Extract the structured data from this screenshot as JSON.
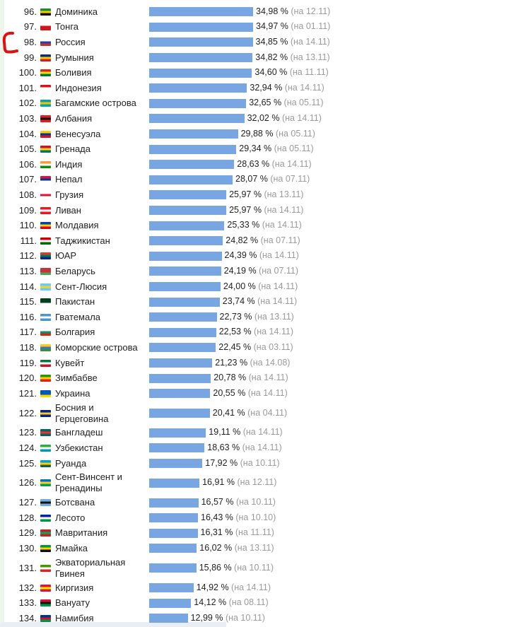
{
  "chart_data": {
    "type": "bar",
    "orientation": "horizontal",
    "value_unit": "%",
    "date_prefix": "на",
    "categories": [
      "Доминика",
      "Тонга",
      "Россия",
      "Румыния",
      "Боливия",
      "Индонезия",
      "Багамские острова",
      "Албания",
      "Венесуэла",
      "Гренада",
      "Индия",
      "Непал",
      "Грузия",
      "Ливан",
      "Молдавия",
      "Таджикистан",
      "ЮАР",
      "Беларусь",
      "Сент-Люсия",
      "Пакистан",
      "Гватемала",
      "Болгария",
      "Коморские острова",
      "Кувейт",
      "Зимбабве",
      "Украина",
      "Босния и Герцеговина",
      "Бангладеш",
      "Узбекистан",
      "Руанда",
      "Сент-Винсент и Гренадины",
      "Ботсвана",
      "Лесото",
      "Мавритания",
      "Ямайка",
      "Экваториальная Гвинея",
      "Киргизия",
      "Вануату",
      "Намибия"
    ],
    "ranks": [
      96,
      97,
      98,
      99,
      100,
      101,
      102,
      103,
      104,
      105,
      106,
      107,
      108,
      109,
      110,
      111,
      112,
      113,
      114,
      115,
      116,
      117,
      118,
      119,
      120,
      121,
      122,
      123,
      124,
      125,
      126,
      127,
      128,
      129,
      130,
      131,
      132,
      133,
      134
    ],
    "values": [
      34.98,
      34.97,
      34.85,
      34.82,
      34.6,
      32.94,
      32.65,
      32.02,
      29.88,
      29.34,
      28.63,
      28.07,
      25.97,
      25.97,
      25.33,
      24.82,
      24.39,
      24.19,
      24.0,
      23.74,
      22.73,
      22.53,
      22.45,
      21.23,
      20.78,
      20.55,
      20.41,
      19.11,
      18.63,
      17.92,
      16.91,
      16.57,
      16.43,
      16.31,
      16.02,
      15.86,
      14.92,
      14.12,
      12.99
    ],
    "value_labels": [
      "34,98 %",
      "34,97 %",
      "34,85 %",
      "34,82 %",
      "34,60 %",
      "32,94 %",
      "32,65 %",
      "32,02 %",
      "29,88 %",
      "29,34 %",
      "28,63 %",
      "28,07 %",
      "25,97 %",
      "25,97 %",
      "25,33 %",
      "24,82 %",
      "24,39 %",
      "24,19 %",
      "24,00 %",
      "23,74 %",
      "22,73 %",
      "22,53 %",
      "22,45 %",
      "21,23 %",
      "20,78 %",
      "20,55 %",
      "20,41 %",
      "19,11 %",
      "18,63 %",
      "17,92 %",
      "16,91 %",
      "16,57 %",
      "16,43 %",
      "16,31 %",
      "16,02 %",
      "15,86 %",
      "14,92 %",
      "14,12 %",
      "12,99 %"
    ],
    "dates": [
      "12.11",
      "01.11",
      "14.11",
      "13.11",
      "11.11",
      "14.11",
      "05.11",
      "14.11",
      "05.11",
      "05.11",
      "14.11",
      "07.11",
      "13.11",
      "14.11",
      "14.11",
      "07.11",
      "14.11",
      "07.11",
      "14.11",
      "14.11",
      "13.11",
      "14.11",
      "03.11",
      "14.08",
      "14.11",
      "14.11",
      "04.11",
      "14.11",
      "14.11",
      "10.11",
      "12.11",
      "10.11",
      "10.10",
      "11.11",
      "13.11",
      "10.11",
      "14.11",
      "08.11",
      "10.11"
    ],
    "bar_color": "#78a6e2",
    "annotation_color": "#e01010"
  },
  "flags": [
    {
      "top": "#1a8c3a",
      "mid": "#f4d000",
      "bot": "#111111"
    },
    {
      "top": "#ffffff",
      "mid": "#d4141c",
      "bot": "#d4141c"
    },
    {
      "top": "#ffffff",
      "mid": "#1c3fb3",
      "bot": "#d52b1e"
    },
    {
      "top": "#0a2a8a",
      "mid": "#f6cf00",
      "bot": "#d21f26"
    },
    {
      "top": "#d52b1e",
      "mid": "#f4e400",
      "bot": "#007934"
    },
    {
      "top": "#d4141c",
      "mid": "#ffffff",
      "bot": "#ffffff"
    },
    {
      "top": "#00a4b4",
      "mid": "#f5c400",
      "bot": "#00a4b4"
    },
    {
      "top": "#e41e20",
      "mid": "#111111",
      "bot": "#e41e20"
    },
    {
      "top": "#f5d000",
      "mid": "#0033a0",
      "bot": "#cf142b"
    },
    {
      "top": "#ce1126",
      "mid": "#fcd116",
      "bot": "#007a5e"
    },
    {
      "top": "#ff9933",
      "mid": "#ffffff",
      "bot": "#138808"
    },
    {
      "top": "#dc143c",
      "mid": "#003893",
      "bot": "#ffffff"
    },
    {
      "top": "#ffffff",
      "mid": "#e8112d",
      "bot": "#ffffff"
    },
    {
      "top": "#ee161f",
      "mid": "#ffffff",
      "bot": "#ee161f"
    },
    {
      "top": "#0046ae",
      "mid": "#ffd200",
      "bot": "#cc092f"
    },
    {
      "top": "#cc0000",
      "mid": "#ffffff",
      "bot": "#006600"
    },
    {
      "top": "#de3831",
      "mid": "#007a4d",
      "bot": "#002395"
    },
    {
      "top": "#c8313e",
      "mid": "#c8313e",
      "bot": "#4aa657"
    },
    {
      "top": "#66ccff",
      "mid": "#fcd116",
      "bot": "#66ccff"
    },
    {
      "top": "#01411c",
      "mid": "#01411c",
      "bot": "#ffffff"
    },
    {
      "top": "#4997d0",
      "mid": "#ffffff",
      "bot": "#4997d0"
    },
    {
      "top": "#ffffff",
      "mid": "#00966e",
      "bot": "#d62612"
    },
    {
      "top": "#ffc61e",
      "mid": "#3a75c4",
      "bot": "#3d8e33"
    },
    {
      "top": "#007a3d",
      "mid": "#ffffff",
      "bot": "#ce1126"
    },
    {
      "top": "#319208",
      "mid": "#ffd200",
      "bot": "#de2010"
    },
    {
      "top": "#0057b7",
      "mid": "#0057b7",
      "bot": "#ffd700"
    },
    {
      "top": "#002395",
      "mid": "#fecb00",
      "bot": "#002395"
    },
    {
      "top": "#006a4e",
      "mid": "#f42a41",
      "bot": "#006a4e"
    },
    {
      "top": "#1eb53a",
      "mid": "#ffffff",
      "bot": "#0099b5"
    },
    {
      "top": "#00a1de",
      "mid": "#fad201",
      "bot": "#20603d"
    },
    {
      "top": "#0072c6",
      "mid": "#fcd116",
      "bot": "#009e60"
    },
    {
      "top": "#75aadb",
      "mid": "#111111",
      "bot": "#75aadb"
    },
    {
      "top": "#00209f",
      "mid": "#ffffff",
      "bot": "#009543"
    },
    {
      "top": "#d01c1f",
      "mid": "#00a95c",
      "bot": "#d01c1f"
    },
    {
      "top": "#009b3a",
      "mid": "#fed100",
      "bot": "#111111"
    },
    {
      "top": "#3e9a00",
      "mid": "#ffffff",
      "bot": "#e32118"
    },
    {
      "top": "#e8112d",
      "mid": "#ffef00",
      "bot": "#e8112d"
    },
    {
      "top": "#d21034",
      "mid": "#111111",
      "bot": "#009543"
    },
    {
      "top": "#003580",
      "mid": "#d21034",
      "bot": "#009543"
    }
  ]
}
